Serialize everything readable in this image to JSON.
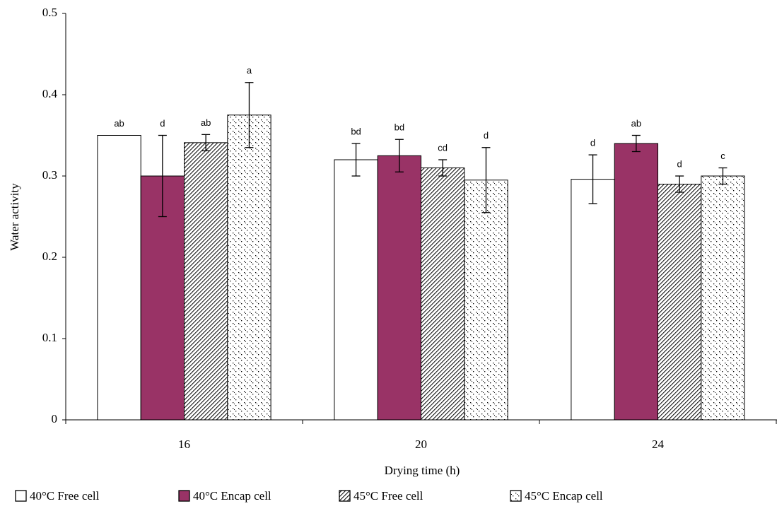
{
  "chart_data": {
    "type": "bar",
    "x_label": "Drying time (h)",
    "y_label": "Water activity",
    "categories": [
      "16",
      "20",
      "24"
    ],
    "ylim": [
      0,
      0.5
    ],
    "yticks": [
      0,
      0.1,
      0.2,
      0.3,
      0.4,
      0.5
    ],
    "series": [
      {
        "name": "40°C Free cell",
        "color": "#ffffff",
        "pattern": "none",
        "values": [
          0.35,
          0.32,
          0.296
        ],
        "errors": [
          null,
          0.02,
          0.03
        ],
        "labels": [
          "ab",
          "bd",
          "d"
        ]
      },
      {
        "name": "40°C Encap cell",
        "color": "#993366",
        "pattern": "none",
        "values": [
          0.3,
          0.325,
          0.34
        ],
        "errors": [
          0.05,
          0.02,
          0.01
        ],
        "labels": [
          "d",
          "bd",
          "ab"
        ]
      },
      {
        "name": "45°C Free cell",
        "color": "#000000",
        "pattern": "diagonal",
        "values": [
          0.341,
          0.31,
          0.29
        ],
        "errors": [
          0.01,
          0.01,
          0.01
        ],
        "labels": [
          "ab",
          "cd",
          "d"
        ]
      },
      {
        "name": "45°C Encap cell",
        "color": "#000000",
        "pattern": "dots",
        "values": [
          0.375,
          0.295,
          0.3
        ],
        "errors": [
          0.04,
          0.04,
          0.01
        ],
        "labels": [
          "a",
          "d",
          "c"
        ]
      }
    ]
  }
}
